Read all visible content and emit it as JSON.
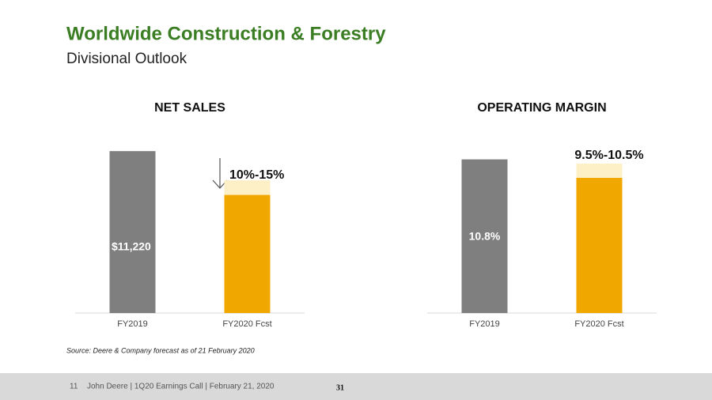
{
  "header": {
    "title": "Worldwide Construction & Forestry",
    "subtitle": "Divisional Outlook"
  },
  "source": "Source: Deere & Company forecast as of 21 February 2020",
  "footer": {
    "page": "11",
    "text": "John Deere | 1Q20 Earnings Call | February 21, 2020",
    "slide_number": "31"
  },
  "chart_data": [
    {
      "type": "bar",
      "title": "NET SALES",
      "categories": [
        "FY2019",
        "FY2020 Fcst"
      ],
      "values": [
        11220,
        9537
      ],
      "value_labels": [
        "$11,220",
        null
      ],
      "range_high": [
        null,
        10098
      ],
      "annotation": "10%-15%",
      "colors": [
        "#7f7f7f",
        "#f0a800"
      ],
      "range_color": "#fdefc6",
      "ylim": [
        5000,
        12500
      ]
    },
    {
      "type": "bar",
      "title": "OPERATING MARGIN",
      "categories": [
        "FY2019",
        "FY2020 Fcst"
      ],
      "values": [
        10.8,
        9.5
      ],
      "value_labels": [
        "10.8%",
        null
      ],
      "range_high": [
        null,
        10.5
      ],
      "annotation": "9.5%-10.5%",
      "colors": [
        "#7f7f7f",
        "#f0a800"
      ],
      "range_color": "#fdefc6",
      "ylim": [
        0,
        12
      ]
    }
  ]
}
